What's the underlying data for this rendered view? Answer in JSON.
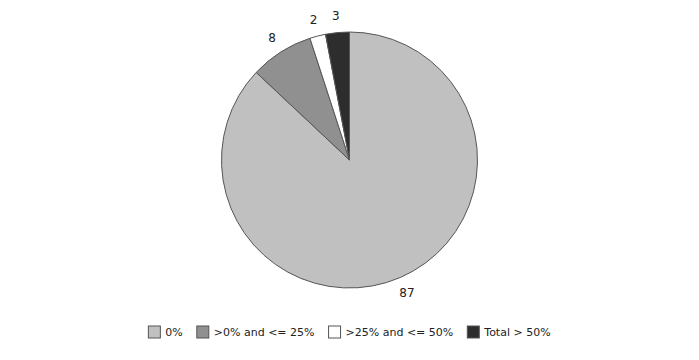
{
  "chart_data": {
    "type": "pie",
    "categories": [
      "0%",
      ">0% and <= 25%",
      ">25% and <= 50%",
      "Total > 50%"
    ],
    "values": [
      87,
      8,
      2,
      3
    ],
    "colors": [
      "#c0c0c0",
      "#909090",
      "#ffffff",
      "#2d2d2d"
    ],
    "data_labels": true,
    "legend": "bottom"
  }
}
